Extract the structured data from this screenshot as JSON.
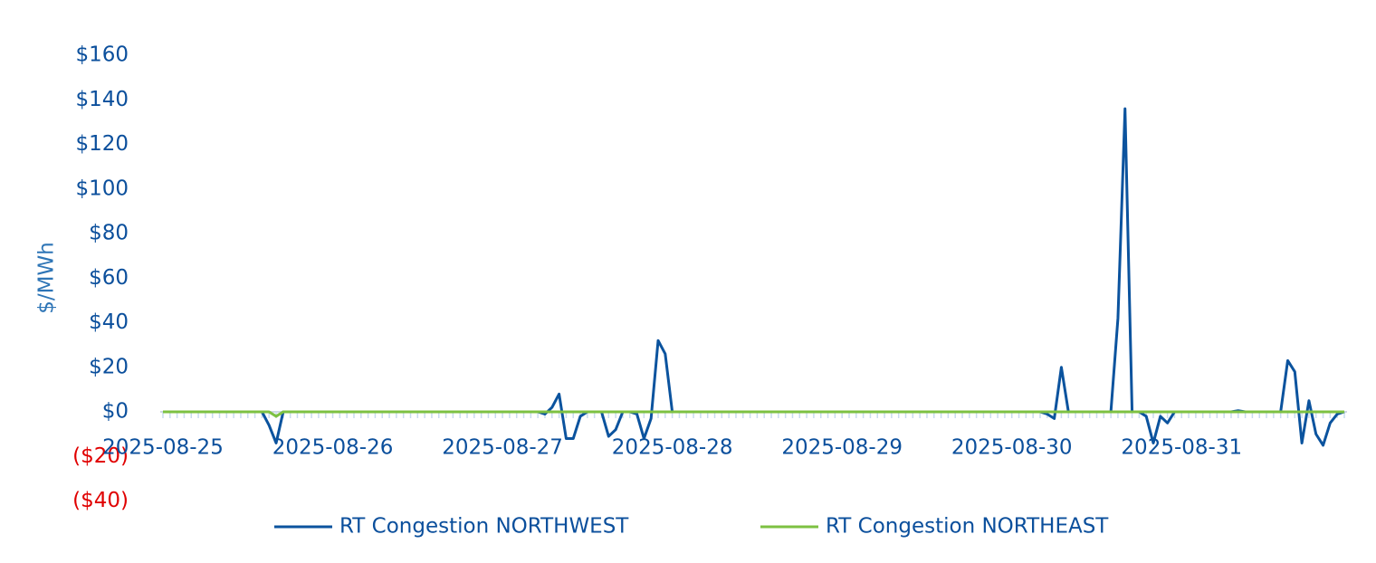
{
  "chart_data": {
    "type": "line",
    "y_label": "$/MWh",
    "categories": [
      "2025-08-25",
      null,
      null,
      null,
      null,
      null,
      null,
      null,
      null,
      null,
      null,
      null,
      null,
      null,
      null,
      null,
      null,
      null,
      null,
      null,
      null,
      null,
      null,
      null,
      "2025-08-26",
      null,
      null,
      null,
      null,
      null,
      null,
      null,
      null,
      null,
      null,
      null,
      null,
      null,
      null,
      null,
      null,
      null,
      null,
      null,
      null,
      null,
      null,
      null,
      "2025-08-27",
      null,
      null,
      null,
      null,
      null,
      null,
      null,
      null,
      null,
      null,
      null,
      null,
      null,
      null,
      null,
      null,
      null,
      null,
      null,
      null,
      null,
      null,
      null,
      "2025-08-28",
      null,
      null,
      null,
      null,
      null,
      null,
      null,
      null,
      null,
      null,
      null,
      null,
      null,
      null,
      null,
      null,
      null,
      null,
      null,
      null,
      null,
      null,
      null,
      "2025-08-29",
      null,
      null,
      null,
      null,
      null,
      null,
      null,
      null,
      null,
      null,
      null,
      null,
      null,
      null,
      null,
      null,
      null,
      null,
      null,
      null,
      null,
      null,
      null,
      "2025-08-30",
      null,
      null,
      null,
      null,
      null,
      null,
      null,
      null,
      null,
      null,
      null,
      null,
      null,
      null,
      null,
      null,
      null,
      null,
      null,
      null,
      null,
      null,
      null,
      "2025-08-31",
      null,
      null,
      null,
      null,
      null,
      null,
      null,
      null,
      null,
      null,
      null,
      null,
      null,
      null,
      null,
      null,
      null,
      null,
      null,
      null,
      null,
      null,
      null
    ],
    "series": [
      {
        "name": "RT Congestion NORTHWEST",
        "color": "#0b539e",
        "values": [
          0,
          0,
          0,
          0,
          0,
          0,
          0,
          0,
          0,
          0,
          0,
          0,
          0,
          0,
          0,
          -6,
          -14,
          0,
          0,
          0,
          0,
          0,
          0,
          0,
          0,
          0,
          0,
          0,
          0,
          0,
          0,
          0,
          0,
          0,
          0,
          0,
          0,
          0,
          0,
          0,
          0,
          0,
          0,
          0,
          0,
          0,
          0,
          0,
          0,
          0,
          0,
          0,
          0,
          0,
          -1,
          2,
          8,
          -12,
          -12,
          -2,
          0,
          0,
          0,
          -11,
          -8,
          0,
          0,
          -1,
          -12,
          -3,
          32,
          26,
          0,
          0,
          0,
          0,
          0,
          0,
          0,
          0,
          0,
          0,
          0,
          0,
          0,
          0,
          0,
          0,
          0,
          0,
          0,
          0,
          0,
          0,
          0,
          0,
          0,
          0,
          0,
          0,
          0,
          0,
          0,
          0,
          0,
          0,
          0,
          0,
          0,
          0,
          0,
          0,
          0,
          0,
          0,
          0,
          0,
          0,
          0,
          0,
          0,
          0,
          0,
          0,
          0,
          -1,
          -3,
          20,
          0,
          0,
          0,
          0,
          0,
          0,
          0,
          42,
          136,
          0,
          0,
          -2,
          -14,
          -2,
          -5,
          0,
          0,
          0,
          0,
          0,
          0,
          0,
          0,
          0,
          0.5,
          0,
          0,
          0,
          0,
          0,
          0,
          23,
          18,
          -14,
          5,
          -10,
          -15,
          -5,
          -1,
          0
        ]
      },
      {
        "name": "RT Congestion NORTHEAST",
        "color": "#7dc142",
        "values": [
          0,
          0,
          0,
          0,
          0,
          0,
          0,
          0,
          0,
          0,
          0,
          0,
          0,
          0,
          0,
          0,
          -2,
          0,
          0,
          0,
          0,
          0,
          0,
          0,
          0,
          0,
          0,
          0,
          0,
          0,
          0,
          0,
          0,
          0,
          0,
          0,
          0,
          0,
          0,
          0,
          0,
          0,
          0,
          0,
          0,
          0,
          0,
          0,
          0,
          0,
          0,
          0,
          0,
          0,
          0,
          0,
          0,
          0,
          0,
          0,
          0,
          0,
          0,
          0,
          0,
          0,
          0,
          0,
          0,
          0,
          0,
          0,
          0,
          0,
          0,
          0,
          0,
          0,
          0,
          0,
          0,
          0,
          0,
          0,
          0,
          0,
          0,
          0,
          0,
          0,
          0,
          0,
          0,
          0,
          0,
          0,
          0,
          0,
          0,
          0,
          0,
          0,
          0,
          0,
          0,
          0,
          0,
          0,
          0,
          0,
          0,
          0,
          0,
          0,
          0,
          0,
          0,
          0,
          0,
          0,
          0,
          0,
          0,
          0,
          0,
          0,
          0,
          0,
          0,
          0,
          0,
          0,
          0,
          0,
          0,
          0,
          0,
          0,
          0,
          0,
          0,
          0,
          0,
          0,
          0,
          0,
          0,
          0,
          0,
          0,
          0,
          0,
          0,
          0,
          0,
          0,
          0,
          0,
          0,
          0,
          0,
          0,
          0,
          0,
          0,
          0,
          0,
          0
        ]
      }
    ],
    "ylim": [
      -40,
      160
    ],
    "yticks": [
      {
        "value": -40,
        "label": "($40)"
      },
      {
        "value": -20,
        "label": "($20)"
      },
      {
        "value": 0,
        "label": "$0"
      },
      {
        "value": 20,
        "label": "$20"
      },
      {
        "value": 40,
        "label": "$40"
      },
      {
        "value": 60,
        "label": "$60"
      },
      {
        "value": 80,
        "label": "$80"
      },
      {
        "value": 100,
        "label": "$100"
      },
      {
        "value": 120,
        "label": "$120"
      },
      {
        "value": 140,
        "label": "$140"
      },
      {
        "value": 160,
        "label": "$160"
      }
    ],
    "tick_label_color": "#0b4f9c",
    "negative_tick_label_color": "#e00000",
    "legend": "bottom",
    "grid": false
  }
}
